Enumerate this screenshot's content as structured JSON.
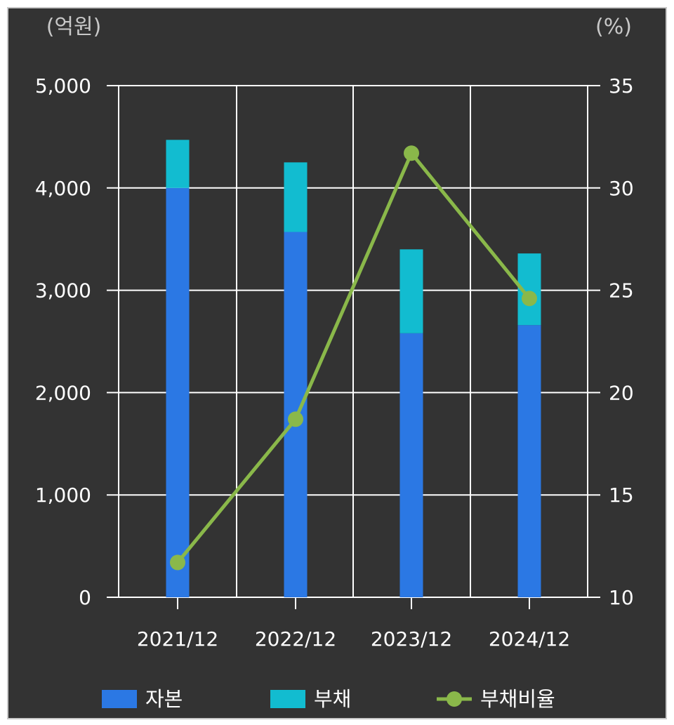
{
  "chart_data": {
    "type": "bar",
    "title": "",
    "y_unit_left": "(억원)",
    "y_unit_right": "(%)",
    "categories": [
      "2021/12",
      "2022/12",
      "2023/12",
      "2024/12"
    ],
    "ylim": [
      0,
      5000
    ],
    "y_ticks": [
      "5,000",
      "4,000",
      "3,000",
      "2,000",
      "1,000",
      "0"
    ],
    "y_tick_values": [
      5000,
      4000,
      3000,
      2000,
      1000,
      0
    ],
    "y2lim": [
      10,
      35
    ],
    "y2_ticks": [
      "35",
      "30",
      "25",
      "20",
      "15",
      "10"
    ],
    "y2_tick_values": [
      35,
      30,
      25,
      20,
      15,
      10
    ],
    "grid": true,
    "legend_position": "bottom",
    "series": [
      {
        "name": "자본",
        "kind": "stacked-bar",
        "axis": "left",
        "color": "#2b78e4",
        "values": [
          4000,
          3570,
          2580,
          2660
        ]
      },
      {
        "name": "부채",
        "kind": "stacked-bar",
        "axis": "left",
        "color": "#12bcd0",
        "values": [
          470,
          680,
          820,
          700
        ]
      },
      {
        "name": "부채비율",
        "kind": "line",
        "axis": "right",
        "color": "#8ab84a",
        "values": [
          11.7,
          18.7,
          31.7,
          24.6
        ]
      }
    ]
  }
}
